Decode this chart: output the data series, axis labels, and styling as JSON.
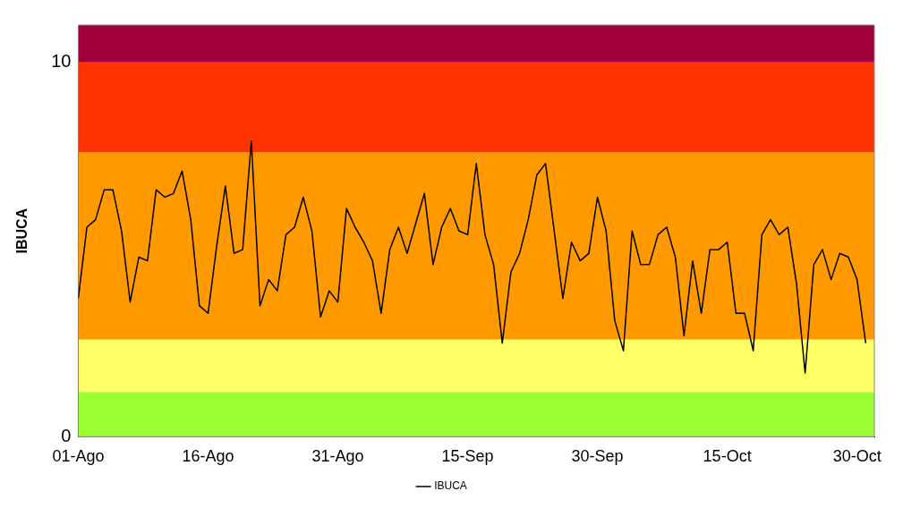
{
  "chart_data": {
    "type": "line",
    "ylabel": "IBUCA",
    "x": [
      "--08-01",
      "--08-02",
      "--08-03",
      "--08-04",
      "--08-05",
      "--08-06",
      "--08-07",
      "--08-08",
      "--08-09",
      "--08-10",
      "--08-11",
      "--08-12",
      "--08-13",
      "--08-14",
      "--08-15",
      "--08-16",
      "--08-17",
      "--08-18",
      "--08-19",
      "--08-20",
      "--08-21",
      "--08-22",
      "--08-23",
      "--08-24",
      "--08-25",
      "--08-26",
      "--08-27",
      "--08-28",
      "--08-29",
      "--08-30",
      "--08-31",
      "--09-01",
      "--09-02",
      "--09-03",
      "--09-04",
      "--09-05",
      "--09-06",
      "--09-07",
      "--09-08",
      "--09-09",
      "--09-10",
      "--09-11",
      "--09-12",
      "--09-13",
      "--09-14",
      "--09-15",
      "--09-16",
      "--09-17",
      "--09-18",
      "--09-19",
      "--09-20",
      "--09-21",
      "--09-22",
      "--09-23",
      "--09-24",
      "--09-25",
      "--09-26",
      "--09-27",
      "--09-28",
      "--09-29",
      "--09-30",
      "--10-01",
      "--10-02",
      "--10-03",
      "--10-04",
      "--10-05",
      "--10-06",
      "--10-07",
      "--10-08",
      "--10-09",
      "--10-10",
      "--10-11",
      "--10-12",
      "--10-13",
      "--10-14",
      "--10-15",
      "--10-16",
      "--10-17",
      "--10-18",
      "--10-19",
      "--10-20",
      "--10-21",
      "--10-22",
      "--10-23",
      "--10-24",
      "--10-25",
      "--10-26",
      "--10-27",
      "--10-28",
      "--10-29",
      "--10-30",
      "--10-31"
    ],
    "series": [
      {
        "name": "IBUCA",
        "color": "#000000",
        "values": [
          3.7,
          5.6,
          5.8,
          6.6,
          6.6,
          5.5,
          3.6,
          4.8,
          4.7,
          6.6,
          6.4,
          6.5,
          7.1,
          5.8,
          3.5,
          3.3,
          5.1,
          6.7,
          4.9,
          5.0,
          7.9,
          3.5,
          4.2,
          3.9,
          5.4,
          5.6,
          6.4,
          5.5,
          3.2,
          3.9,
          3.6,
          6.1,
          5.6,
          5.2,
          4.7,
          3.3,
          5.0,
          5.6,
          4.9,
          5.7,
          6.5,
          4.6,
          5.6,
          6.1,
          5.5,
          5.4,
          7.3,
          5.4,
          4.6,
          2.5,
          4.4,
          4.9,
          5.8,
          7.0,
          7.3,
          5.5,
          3.7,
          5.2,
          4.7,
          4.9,
          6.4,
          5.5,
          3.1,
          2.3,
          5.5,
          4.6,
          4.6,
          5.4,
          5.6,
          4.8,
          2.7,
          4.7,
          3.3,
          5.0,
          5.0,
          5.2,
          3.3,
          3.3,
          2.3,
          5.4,
          5.8,
          5.4,
          5.6,
          4.1,
          1.7,
          4.6,
          5.0,
          4.2,
          4.9,
          4.8,
          4.2,
          2.5
        ]
      }
    ],
    "xlim": [
      "--08-01",
      "--11-01"
    ],
    "xticks": [
      {
        "value": "--08-01",
        "label": "01-Ago"
      },
      {
        "value": "--08-16",
        "label": "16-Ago"
      },
      {
        "value": "--08-31",
        "label": "31-Ago"
      },
      {
        "value": "--09-15",
        "label": "15-Sep"
      },
      {
        "value": "--09-30",
        "label": "30-Sep"
      },
      {
        "value": "--10-15",
        "label": "15-Oct"
      },
      {
        "value": "--10-30",
        "label": "30-Oct"
      }
    ],
    "ylim": [
      0,
      11
    ],
    "yticks": [
      0,
      10
    ],
    "bands": [
      {
        "axis": "y",
        "from": 0,
        "to": 1.2,
        "color": "#99ff33"
      },
      {
        "axis": "y",
        "from": 1.2,
        "to": 2.6,
        "color": "#ffff66"
      },
      {
        "axis": "y",
        "from": 2.6,
        "to": 7.6,
        "color": "#ff9900"
      },
      {
        "axis": "y",
        "from": 7.6,
        "to": 10,
        "color": "#ff3300"
      },
      {
        "axis": "y",
        "from": 10,
        "to": 11,
        "color": "#a0003c"
      }
    ],
    "grid": false,
    "legend": "bottom",
    "marker": "none",
    "line_style": "solid"
  }
}
